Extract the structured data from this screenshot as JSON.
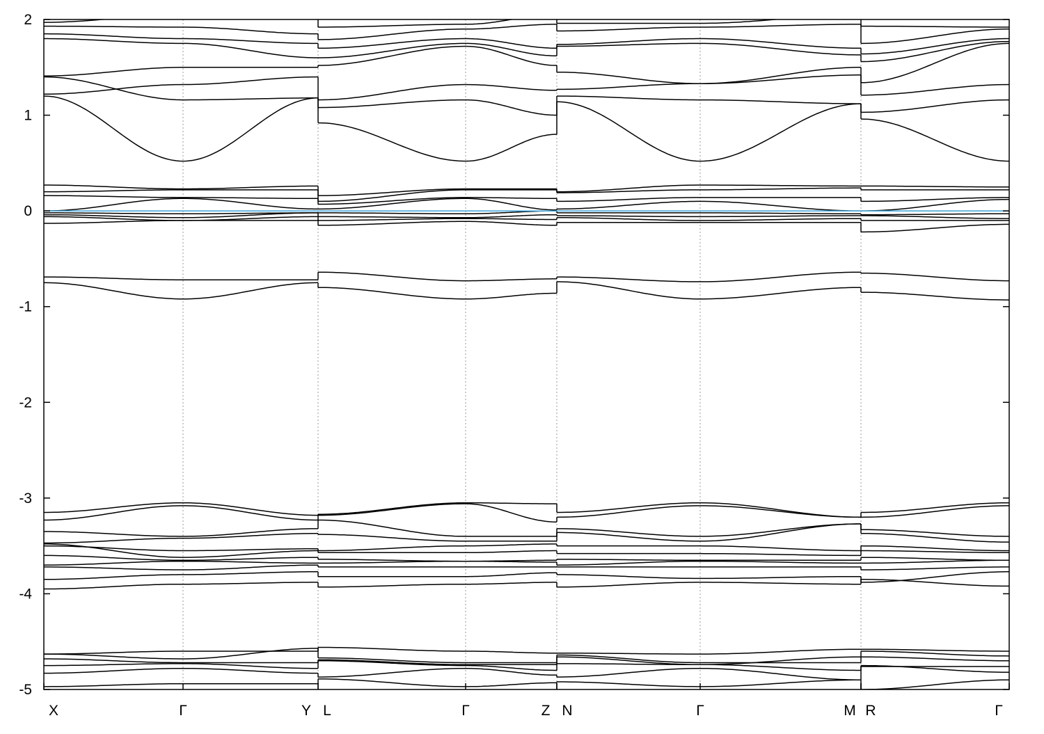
{
  "chart_data": {
    "type": "line",
    "title": "",
    "xlabel": "",
    "ylabel": "",
    "ylim": [
      -5,
      2
    ],
    "yticks": [
      2,
      1,
      0,
      -1,
      -2,
      -3,
      -4,
      -5
    ],
    "kpoint_labels": [
      "X",
      "Γ",
      "Y",
      "L",
      "Γ",
      "Z",
      "N",
      "Γ",
      "M",
      "R",
      "Γ"
    ],
    "segments": [
      [
        0,
        1
      ],
      [
        1,
        2
      ],
      [
        3,
        4
      ],
      [
        4,
        5
      ],
      [
        6,
        7
      ],
      [
        7,
        8
      ],
      [
        9,
        10
      ]
    ],
    "fermi_level": 0,
    "fermi_color": "#4aa8d8",
    "band_color": "#000000",
    "grid": "vertical dashed lines at high-symmetry points",
    "bands": [
      [
        -4.63,
        -4.6,
        -4.6,
        -4.56,
        -4.6,
        -4.62,
        -4.62,
        -4.63,
        -4.58,
        -4.58,
        -4.6
      ],
      [
        -4.63,
        -4.68,
        -4.57,
        -4.67,
        -4.72,
        -4.72,
        -4.64,
        -4.72,
        -4.72,
        -4.6,
        -4.65
      ],
      [
        -4.68,
        -4.72,
        -4.72,
        -4.69,
        -4.74,
        -4.74,
        -4.66,
        -4.74,
        -4.66,
        -4.66,
        -4.7
      ],
      [
        -4.75,
        -4.73,
        -4.78,
        -4.7,
        -4.75,
        -4.8,
        -4.73,
        -4.74,
        -4.8,
        -4.76,
        -4.76
      ],
      [
        -4.83,
        -4.78,
        -4.83,
        -4.87,
        -4.78,
        -4.85,
        -4.87,
        -4.78,
        -4.9,
        -4.75,
        -4.82
      ],
      [
        -4.97,
        -4.94,
        -4.94,
        -4.89,
        -4.97,
        -4.93,
        -4.92,
        -4.97,
        -4.9,
        -5.0,
        -4.9
      ],
      [
        -3.15,
        -3.05,
        -3.18,
        -3.17,
        -3.05,
        -3.06,
        -3.15,
        -3.05,
        -3.2,
        -3.15,
        -3.05
      ],
      [
        -3.23,
        -3.08,
        -3.23,
        -3.18,
        -3.06,
        -3.25,
        -3.2,
        -3.08,
        -3.2,
        -3.2,
        -3.08
      ],
      [
        -3.35,
        -3.4,
        -3.32,
        -3.23,
        -3.4,
        -3.4,
        -3.32,
        -3.4,
        -3.27,
        -3.33,
        -3.4
      ],
      [
        -3.47,
        -3.42,
        -3.37,
        -3.38,
        -3.45,
        -3.45,
        -3.36,
        -3.45,
        -3.27,
        -3.37,
        -3.46
      ],
      [
        -3.5,
        -3.55,
        -3.53,
        -3.55,
        -3.5,
        -3.48,
        -3.5,
        -3.5,
        -3.55,
        -3.5,
        -3.55
      ],
      [
        -3.48,
        -3.62,
        -3.55,
        -3.57,
        -3.57,
        -3.55,
        -3.58,
        -3.58,
        -3.6,
        -3.55,
        -3.57
      ],
      [
        -3.6,
        -3.65,
        -3.62,
        -3.64,
        -3.66,
        -3.65,
        -3.64,
        -3.65,
        -3.65,
        -3.62,
        -3.65
      ],
      [
        -3.7,
        -3.66,
        -3.68,
        -3.68,
        -3.66,
        -3.67,
        -3.7,
        -3.66,
        -3.68,
        -3.68,
        -3.65
      ],
      [
        -3.72,
        -3.75,
        -3.7,
        -3.72,
        -3.72,
        -3.72,
        -3.72,
        -3.72,
        -3.72,
        -3.75,
        -3.72
      ],
      [
        -3.85,
        -3.8,
        -3.77,
        -3.82,
        -3.82,
        -3.78,
        -3.8,
        -3.84,
        -3.82,
        -3.88,
        -3.77
      ],
      [
        -3.95,
        -3.9,
        -3.88,
        -3.93,
        -3.9,
        -3.88,
        -3.93,
        -3.88,
        -3.9,
        -3.85,
        -3.92
      ],
      [
        -0.69,
        -0.72,
        -0.72,
        -0.64,
        -0.73,
        -0.71,
        -0.69,
        -0.74,
        -0.64,
        -0.65,
        -0.73
      ],
      [
        -0.75,
        -0.92,
        -0.75,
        -0.8,
        -0.92,
        -0.86,
        -0.74,
        -0.92,
        -0.8,
        -0.85,
        -0.93
      ],
      [
        0.27,
        0.23,
        0.26,
        0.16,
        0.23,
        0.23,
        0.2,
        0.27,
        0.26,
        0.26,
        0.25
      ],
      [
        0.2,
        0.22,
        0.22,
        0.1,
        0.22,
        0.22,
        0.19,
        0.22,
        0.24,
        0.22,
        0.22
      ],
      [
        0.16,
        0.14,
        0.13,
        0.07,
        0.14,
        0.13,
        0.1,
        0.14,
        0.14,
        0.1,
        0.14
      ],
      [
        0.0,
        0.13,
        0.02,
        0.02,
        0.13,
        0.01,
        0.02,
        0.1,
        0.0,
        0.0,
        0.12
      ],
      [
        -0.02,
        -0.03,
        -0.02,
        -0.02,
        -0.03,
        0.0,
        -0.02,
        -0.02,
        -0.03,
        -0.04,
        -0.03
      ],
      [
        -0.04,
        -0.07,
        -0.02,
        -0.06,
        -0.07,
        -0.04,
        -0.05,
        -0.06,
        -0.05,
        -0.05,
        -0.08
      ],
      [
        -0.06,
        -0.1,
        -0.06,
        -0.1,
        -0.08,
        -0.09,
        -0.07,
        -0.1,
        -0.08,
        -0.1,
        -0.1
      ],
      [
        -0.13,
        -0.1,
        -0.1,
        -0.15,
        -0.11,
        -0.15,
        -0.12,
        -0.12,
        -0.12,
        -0.22,
        -0.14
      ],
      [
        1.2,
        0.52,
        1.18,
        0.92,
        0.52,
        0.8,
        1.14,
        0.52,
        1.12,
        0.96,
        0.52
      ],
      [
        1.4,
        1.16,
        1.18,
        1.08,
        1.16,
        1.0,
        1.2,
        1.16,
        1.12,
        1.03,
        1.16
      ],
      [
        1.22,
        1.32,
        1.4,
        1.16,
        1.32,
        1.26,
        1.27,
        1.33,
        1.42,
        1.21,
        1.32
      ],
      [
        1.41,
        1.5,
        1.5,
        1.52,
        1.72,
        1.52,
        1.45,
        1.33,
        1.5,
        1.34,
        1.75
      ],
      [
        1.8,
        1.75,
        1.6,
        1.6,
        1.75,
        1.62,
        1.72,
        1.75,
        1.63,
        1.56,
        1.77
      ],
      [
        1.85,
        1.8,
        1.75,
        1.7,
        1.8,
        1.7,
        1.74,
        1.8,
        1.7,
        1.64,
        1.8
      ],
      [
        1.93,
        1.92,
        1.85,
        1.79,
        1.9,
        1.95,
        1.88,
        1.92,
        1.95,
        1.75,
        1.9
      ],
      [
        1.97,
        2.05,
        2.1,
        1.92,
        1.95,
        2.05,
        1.96,
        1.96,
        2.05,
        1.93,
        1.92
      ]
    ]
  }
}
